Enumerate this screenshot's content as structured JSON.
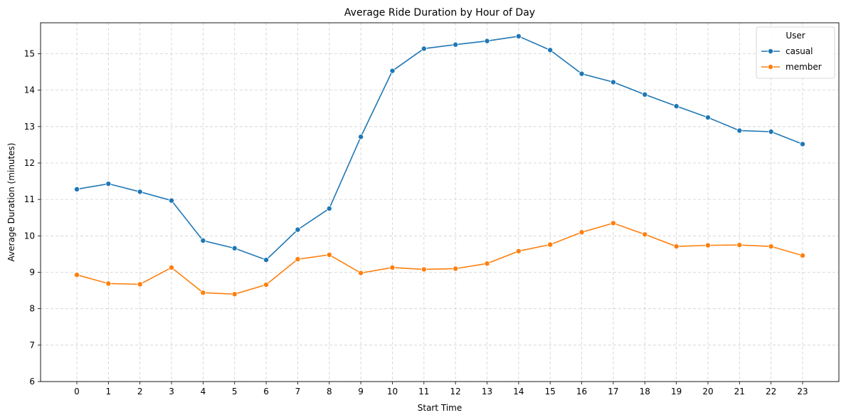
{
  "chart_data": {
    "type": "line",
    "title": "Average Ride Duration by Hour of Day",
    "xlabel": "Start Time",
    "ylabel": "Average Duration (minutes)",
    "x": [
      0,
      1,
      2,
      3,
      4,
      5,
      6,
      7,
      8,
      9,
      10,
      11,
      12,
      13,
      14,
      15,
      16,
      17,
      18,
      19,
      20,
      21,
      22,
      23
    ],
    "xlim": [
      -1.15,
      24.15
    ],
    "ylim": [
      6,
      15.85
    ],
    "yticks": [
      6,
      7,
      8,
      9,
      10,
      11,
      12,
      13,
      14,
      15
    ],
    "grid": true,
    "legend": {
      "title": "User",
      "placement": "top-right"
    },
    "series": [
      {
        "name": "casual",
        "color": "#1f77b4",
        "marker": "circle",
        "values": [
          11.28,
          11.43,
          11.21,
          10.97,
          9.87,
          9.66,
          9.34,
          10.17,
          10.75,
          12.72,
          14.53,
          15.14,
          15.25,
          15.35,
          15.48,
          15.1,
          14.45,
          14.22,
          13.88,
          13.56,
          13.25,
          12.89,
          12.86,
          12.52
        ]
      },
      {
        "name": "member",
        "color": "#ff7f0e",
        "marker": "circle",
        "values": [
          8.93,
          8.69,
          8.67,
          9.13,
          8.44,
          8.4,
          8.66,
          9.36,
          9.48,
          8.98,
          9.13,
          9.08,
          9.1,
          9.24,
          9.58,
          9.76,
          10.1,
          10.35,
          10.04,
          9.71,
          9.74,
          9.75,
          9.71,
          9.46
        ]
      }
    ]
  }
}
